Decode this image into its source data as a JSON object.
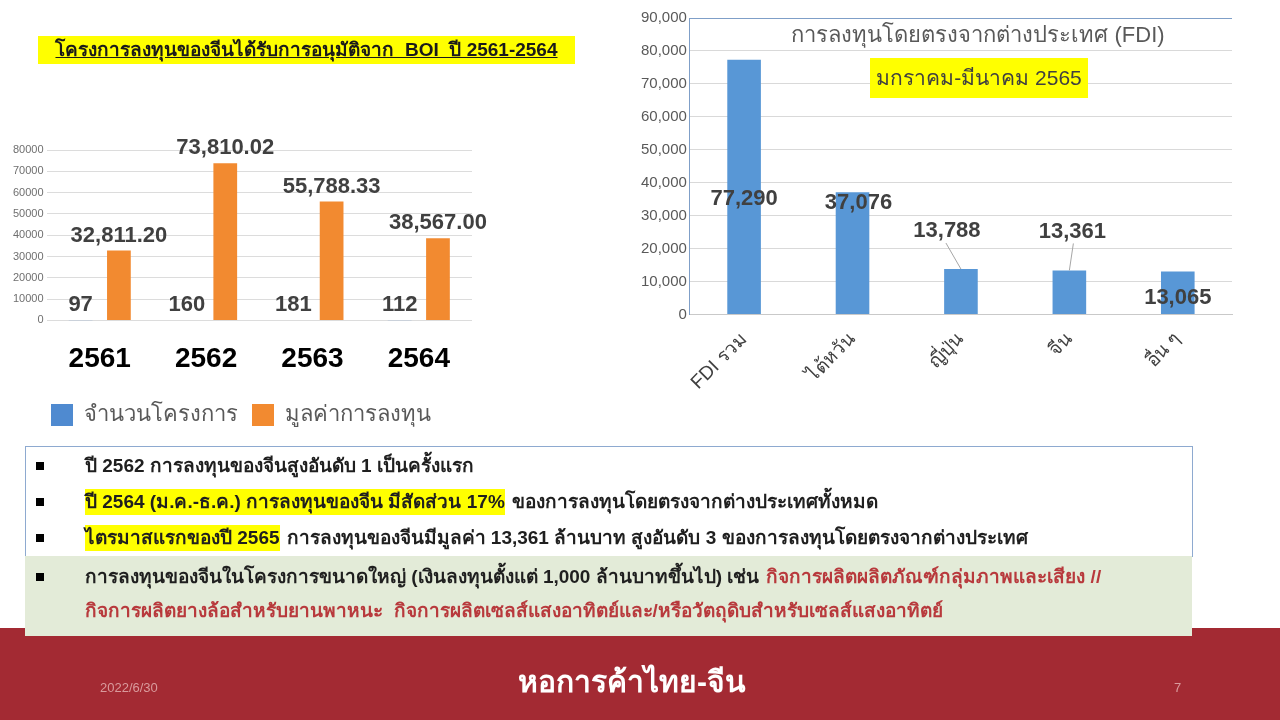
{
  "chart_data": [
    {
      "type": "bar",
      "title": "โครงการลงทุนของจีนได้รับการอนุมัติจาก  BOI  ปี 2561-2564",
      "categories": [
        "2561",
        "2562",
        "2563",
        "2564"
      ],
      "series": [
        {
          "name": "จำนวนโครงการ",
          "color": "#4f8ad0",
          "values": [
            97,
            160,
            181,
            112
          ],
          "value_labels": [
            "97",
            "160",
            "181",
            "112"
          ]
        },
        {
          "name": "มูลค่าการลงทุน",
          "color": "#f28a30",
          "values": [
            32811.2,
            73810.02,
            55788.33,
            38567.0
          ],
          "value_labels": [
            "32,811.20",
            "73,810.02",
            "55,788.33",
            "38,567.00"
          ]
        }
      ],
      "ylim": [
        0,
        80000
      ],
      "yticks": [
        0,
        10000,
        20000,
        30000,
        40000,
        50000,
        60000,
        70000,
        80000
      ],
      "grid": "y",
      "legend": "bottom"
    },
    {
      "type": "bar",
      "title": "การลงทุนโดยตรงจากต่างประเทศ (FDI)",
      "subtitle": "มกราคม-มีนาคม 2565",
      "categories": [
        "FDI รวม",
        "ไต้หวัน",
        "ญี่ปุ่น",
        "จีน",
        "อื่น ๆ"
      ],
      "values": [
        77290,
        37076,
        13788,
        13361,
        13065
      ],
      "value_labels": [
        "77,290",
        "37,076",
        "13,788",
        "13,361",
        "13,065"
      ],
      "color": "#5897d6",
      "ylim": [
        0,
        90000
      ],
      "yticks": [
        {
          "value": 0,
          "label": "0"
        },
        {
          "value": 10000,
          "label": "10,000"
        },
        {
          "value": 20000,
          "label": "20,000"
        },
        {
          "value": 30000,
          "label": "30,000"
        },
        {
          "value": 40000,
          "label": "40,000"
        },
        {
          "value": 50000,
          "label": "50,000"
        },
        {
          "value": 60000,
          "label": "60,000"
        },
        {
          "value": 70000,
          "label": "70,000"
        },
        {
          "value": 80000,
          "label": "80,000"
        },
        {
          "value": 90000,
          "label": "90,000"
        }
      ],
      "grid": "y"
    },
    {
      "type": "other",
      "annotations": [
        "ปี 2562 การลงทุนของจีนสูงอันดับ 1 เป็นครั้งแรก",
        "ปี 2564 (ม.ค.-ธ.ค.) การลงทุนของจีน มีสัดส่วน 17%",
        "ของการลงทุนโดยตรงจากต่างประเทศทั้งหมด",
        "ไตรมาสแรกของปี 2565",
        "การลงทุนของจีนมีมูลค่า 13,361 ล้านบาท สูงอันดับ 3 ของการลงทุนโดยตรงจากต่างประเทศ",
        "การลงทุนของจีนในโครงการขนาดใหญ่ (เงินลงทุนตั้งแต่ 1,000 ล้านบาทขึ้นไป) เช่น",
        "กิจการผลิตผลิตภัณฑ์กลุ่มภาพและเสียง //",
        "กิจการผลิตยางล้อสำหรับยานพาหนะ  กิจการผลิตเซลส์แสงอาทิตย์และ/หรือวัตถุดิบสำหรับเซลส์แสงอาทิตย์",
        "2022/6/30",
        "7",
        "หอการค้าไทย-จีน"
      ]
    }
  ]
}
